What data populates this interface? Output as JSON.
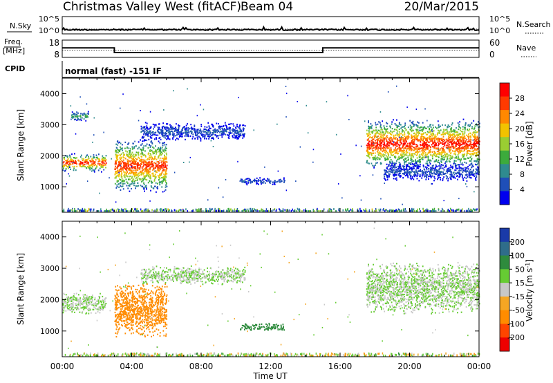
{
  "header": {
    "title": "Christmas Valley West (fitACF)",
    "beam": "Beam 04",
    "date": "20/Mar/2015"
  },
  "noise_panel": {
    "left_label": "N.Sky",
    "right_label": "N.Search",
    "left_ticks": [
      "10^5",
      "10^0"
    ],
    "right_ticks": [
      "10^5",
      "10^0"
    ]
  },
  "freq_panel": {
    "left_label_1": "Freq.",
    "left_label_2": "[MHz]",
    "left_ticks": [
      "18",
      "8"
    ],
    "right_label": "Nave",
    "right_ticks": [
      "60",
      "0"
    ]
  },
  "cpid": {
    "label": "CPID",
    "text": "normal (fast) -151 IF"
  },
  "x_axis": {
    "label": "Time UT",
    "ticks": [
      "00:00",
      "04:00",
      "08:00",
      "12:00",
      "16:00",
      "20:00",
      "00:00"
    ]
  },
  "chart_data": [
    {
      "type": "heatmap",
      "name": "power",
      "xlabel": "Time UT",
      "ylabel": "Slant Range [km]",
      "x_range_hours": [
        0,
        24
      ],
      "ylim": [
        180,
        4500
      ],
      "yticks": [
        "1000",
        "2000",
        "3000",
        "4000"
      ],
      "colorbar": {
        "label": "Power [dB]",
        "ticks": [
          "4",
          "8",
          "12",
          "16",
          "20",
          "24",
          "28"
        ],
        "colors": [
          "#0000ee",
          "#1f4fb8",
          "#2f8b8f",
          "#3cab3c",
          "#9acd32",
          "#f2c200",
          "#ff8800",
          "#ff3a00",
          "#ff0000"
        ]
      },
      "echo_regions": [
        {
          "t_start": 0.0,
          "t_end": 2.5,
          "range_center_km": 1800,
          "range_width_km": 500,
          "peak_db": 30
        },
        {
          "t_start": 0.5,
          "t_end": 1.5,
          "range_center_km": 3300,
          "range_width_km": 300,
          "peak_db": 12
        },
        {
          "t_start": 3.0,
          "t_end": 6.0,
          "range_center_km": 1700,
          "range_width_km": 1500,
          "peak_db": 28
        },
        {
          "t_start": 4.5,
          "t_end": 10.5,
          "range_center_km": 2800,
          "range_width_km": 500,
          "peak_db": 6
        },
        {
          "t_start": 10.2,
          "t_end": 12.8,
          "range_center_km": 1200,
          "range_width_km": 200,
          "peak_db": 6
        },
        {
          "t_start": 17.5,
          "t_end": 24.0,
          "range_center_km": 2400,
          "range_width_km": 1400,
          "peak_db": 30
        },
        {
          "t_start": 18.5,
          "t_end": 24.0,
          "range_center_km": 1500,
          "range_width_km": 500,
          "peak_db": 6
        }
      ]
    },
    {
      "type": "heatmap",
      "name": "velocity",
      "xlabel": "Time UT",
      "ylabel": "Slant Range [km]",
      "x_range_hours": [
        0,
        24
      ],
      "ylim": [
        180,
        4500
      ],
      "yticks": [
        "1000",
        "2000",
        "3000",
        "4000"
      ],
      "colorbar": {
        "label": "Velocity [m s",
        "label_sup": "-1",
        "label_end": "]",
        "ticks": [
          "200",
          "100",
          "50",
          "15",
          "-15",
          "-50",
          "-100",
          "-200"
        ],
        "colors": [
          "#1a3aa8",
          "#2f6d8a",
          "#2e8b3d",
          "#66cc33",
          "#c8c8c8",
          "#f5a623",
          "#ff8c00",
          "#ff4500",
          "#ee0000"
        ]
      },
      "echo_regions": [
        {
          "t_start": 0.0,
          "t_end": 2.5,
          "range_center_km": 1900,
          "range_width_km": 600,
          "velocity": 0
        },
        {
          "t_start": 3.0,
          "t_end": 6.0,
          "range_center_km": 1700,
          "range_width_km": 1500,
          "velocity": -60
        },
        {
          "t_start": 4.5,
          "t_end": 10.5,
          "range_center_km": 2800,
          "range_width_km": 500,
          "velocity": 0
        },
        {
          "t_start": 10.2,
          "t_end": 12.8,
          "range_center_km": 1150,
          "range_width_km": 200,
          "velocity": 60
        },
        {
          "t_start": 17.5,
          "t_end": 24.0,
          "range_center_km": 2400,
          "range_width_km": 1400,
          "velocity": 0
        }
      ]
    }
  ],
  "frequency_data": {
    "type": "line",
    "segments": [
      {
        "t_start": 0,
        "t_end": 3.0,
        "freq_mhz": 13.5
      },
      {
        "t_start": 3.0,
        "t_end": 15.0,
        "freq_mhz": 10.8
      },
      {
        "t_start": 15.0,
        "t_end": 24.0,
        "freq_mhz": 13.5
      }
    ]
  }
}
